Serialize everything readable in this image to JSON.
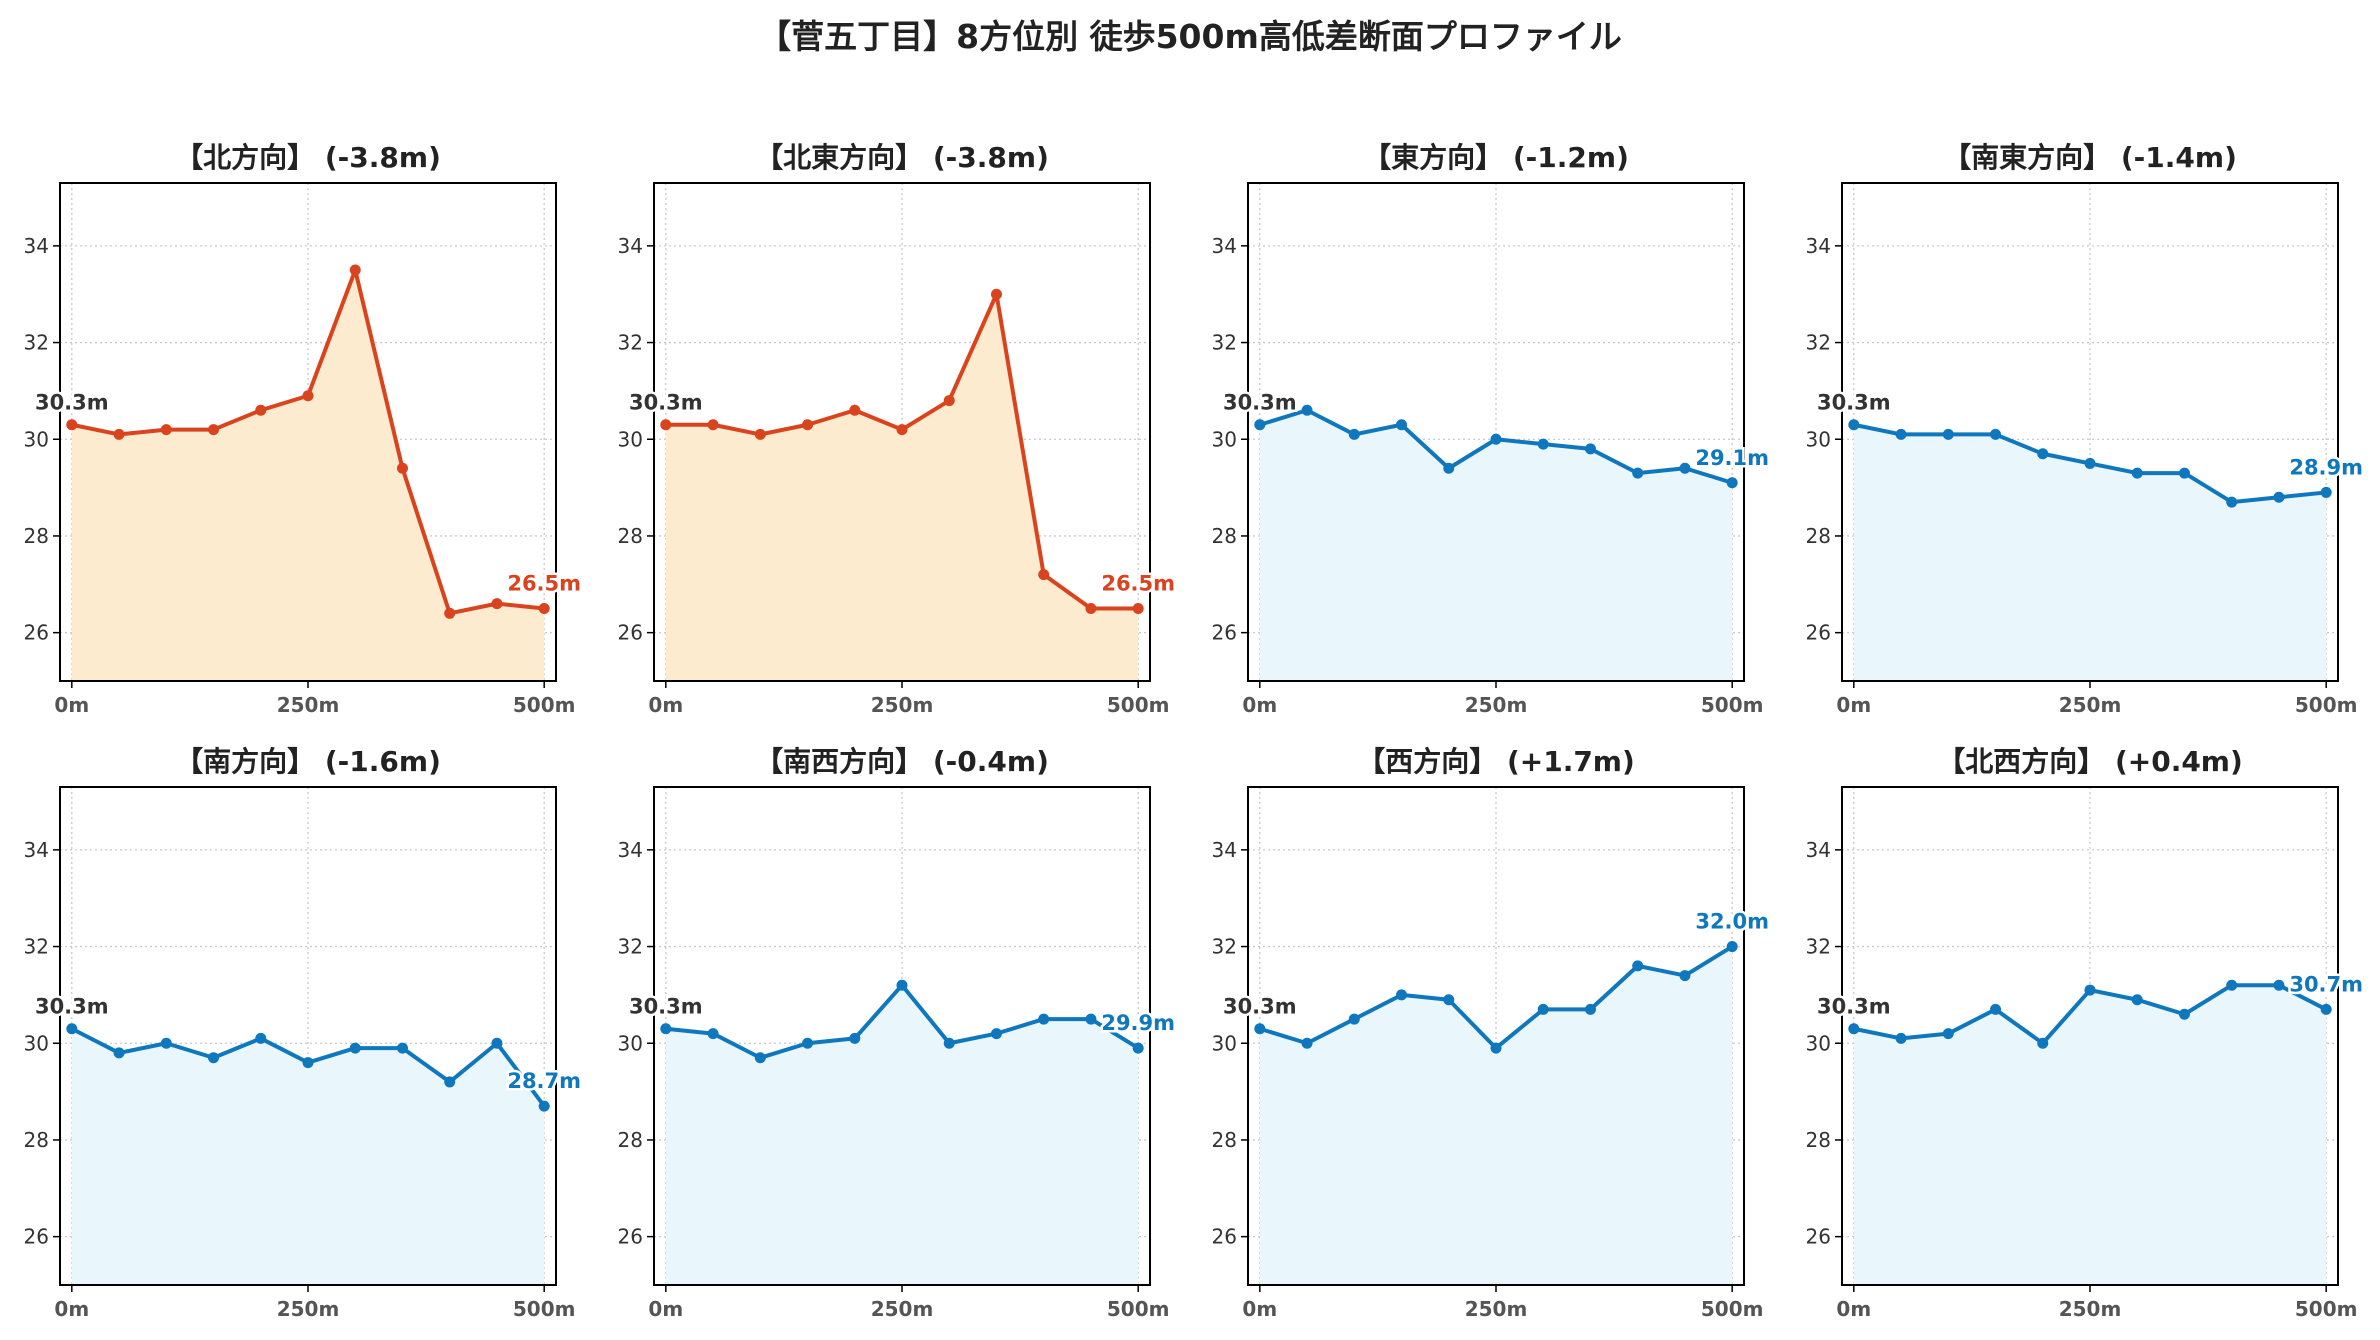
{
  "title": "【菅五丁目】8方位別 徒歩500m高低差断面プロファイル",
  "colors": {
    "down_line": "#d9431e",
    "down_fill": "#fdebd0",
    "flat_line": "#0e77bd",
    "flat_fill": "#e9f6fc",
    "start_label": "#333333",
    "grid": "#c8c8c8"
  },
  "chart_data": [
    {
      "type": "area",
      "title": "【北方向】 (-3.8m)",
      "x": [
        0,
        50,
        100,
        150,
        200,
        250,
        300,
        350,
        400,
        450,
        500
      ],
      "series": [
        {
          "values": [
            30.3,
            30.1,
            30.2,
            30.2,
            30.6,
            30.9,
            33.5,
            29.4,
            26.4,
            26.6,
            26.5
          ]
        }
      ],
      "start_label": "30.3m",
      "end_label": "26.5m",
      "style": "down",
      "xticks": [
        "0m",
        "250m",
        "500m"
      ],
      "yticks": [
        26,
        28,
        30,
        32,
        34
      ],
      "ylim": [
        25,
        35.3
      ],
      "grid": true
    },
    {
      "type": "area",
      "title": "【北東方向】 (-3.8m)",
      "x": [
        0,
        50,
        100,
        150,
        200,
        250,
        300,
        350,
        400,
        450,
        500
      ],
      "series": [
        {
          "values": [
            30.3,
            30.3,
            30.1,
            30.3,
            30.6,
            30.2,
            30.8,
            33.0,
            27.2,
            26.5,
            26.5
          ]
        }
      ],
      "start_label": "30.3m",
      "end_label": "26.5m",
      "style": "down",
      "xticks": [
        "0m",
        "250m",
        "500m"
      ],
      "yticks": [
        26,
        28,
        30,
        32,
        34
      ],
      "ylim": [
        25,
        35.3
      ],
      "grid": true
    },
    {
      "type": "area",
      "title": "【東方向】 (-1.2m)",
      "x": [
        0,
        50,
        100,
        150,
        200,
        250,
        300,
        350,
        400,
        450,
        500
      ],
      "series": [
        {
          "values": [
            30.3,
            30.6,
            30.1,
            30.3,
            29.4,
            30.0,
            29.9,
            29.8,
            29.3,
            29.4,
            29.1
          ]
        }
      ],
      "start_label": "30.3m",
      "end_label": "29.1m",
      "style": "flat",
      "xticks": [
        "0m",
        "250m",
        "500m"
      ],
      "yticks": [
        26,
        28,
        30,
        32,
        34
      ],
      "ylim": [
        25,
        35.3
      ],
      "grid": true
    },
    {
      "type": "area",
      "title": "【南東方向】 (-1.4m)",
      "x": [
        0,
        50,
        100,
        150,
        200,
        250,
        300,
        350,
        400,
        450,
        500
      ],
      "series": [
        {
          "values": [
            30.3,
            30.1,
            30.1,
            30.1,
            29.7,
            29.5,
            29.3,
            29.3,
            28.7,
            28.8,
            28.9
          ]
        }
      ],
      "start_label": "30.3m",
      "end_label": "28.9m",
      "style": "flat",
      "xticks": [
        "0m",
        "250m",
        "500m"
      ],
      "yticks": [
        26,
        28,
        30,
        32,
        34
      ],
      "ylim": [
        25,
        35.3
      ],
      "grid": true
    },
    {
      "type": "area",
      "title": "【南方向】 (-1.6m)",
      "x": [
        0,
        50,
        100,
        150,
        200,
        250,
        300,
        350,
        400,
        450,
        500
      ],
      "series": [
        {
          "values": [
            30.3,
            29.8,
            30.0,
            29.7,
            30.1,
            29.6,
            29.9,
            29.9,
            29.2,
            30.0,
            28.7
          ]
        }
      ],
      "start_label": "30.3m",
      "end_label": "28.7m",
      "style": "flat",
      "xticks": [
        "0m",
        "250m",
        "500m"
      ],
      "yticks": [
        26,
        28,
        30,
        32,
        34
      ],
      "ylim": [
        25,
        35.3
      ],
      "grid": true
    },
    {
      "type": "area",
      "title": "【南西方向】 (-0.4m)",
      "x": [
        0,
        50,
        100,
        150,
        200,
        250,
        300,
        350,
        400,
        450,
        500
      ],
      "series": [
        {
          "values": [
            30.3,
            30.2,
            29.7,
            30.0,
            30.1,
            31.2,
            30.0,
            30.2,
            30.5,
            30.5,
            29.9
          ]
        }
      ],
      "start_label": "30.3m",
      "end_label": "29.9m",
      "style": "flat",
      "xticks": [
        "0m",
        "250m",
        "500m"
      ],
      "yticks": [
        26,
        28,
        30,
        32,
        34
      ],
      "ylim": [
        25,
        35.3
      ],
      "grid": true
    },
    {
      "type": "area",
      "title": "【西方向】 (+1.7m)",
      "x": [
        0,
        50,
        100,
        150,
        200,
        250,
        300,
        350,
        400,
        450,
        500
      ],
      "series": [
        {
          "values": [
            30.3,
            30.0,
            30.5,
            31.0,
            30.9,
            29.9,
            30.7,
            30.7,
            31.6,
            31.4,
            32.0
          ]
        }
      ],
      "start_label": "30.3m",
      "end_label": "32.0m",
      "style": "flat",
      "xticks": [
        "0m",
        "250m",
        "500m"
      ],
      "yticks": [
        26,
        28,
        30,
        32,
        34
      ],
      "ylim": [
        25,
        35.3
      ],
      "grid": true
    },
    {
      "type": "area",
      "title": "【北西方向】 (+0.4m)",
      "x": [
        0,
        50,
        100,
        150,
        200,
        250,
        300,
        350,
        400,
        450,
        500
      ],
      "series": [
        {
          "values": [
            30.3,
            30.1,
            30.2,
            30.7,
            30.0,
            31.1,
            30.9,
            30.6,
            31.2,
            31.2,
            30.7
          ]
        }
      ],
      "start_label": "30.3m",
      "end_label": "30.7m",
      "style": "flat",
      "xticks": [
        "0m",
        "250m",
        "500m"
      ],
      "yticks": [
        26,
        28,
        30,
        32,
        34
      ],
      "ylim": [
        25,
        35.3
      ],
      "grid": true
    }
  ]
}
